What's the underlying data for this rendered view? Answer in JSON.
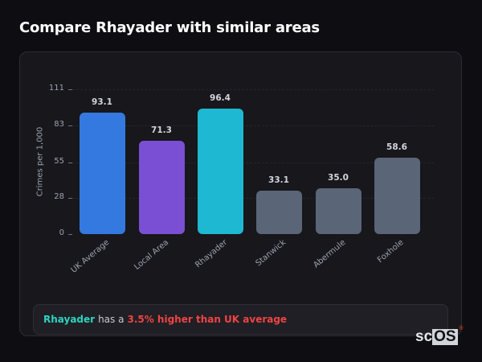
{
  "page": {
    "title": "Compare Rhayader with similar areas"
  },
  "summary": {
    "area": "Rhayader",
    "middle": "has a",
    "difference": "3.5% higher than UK average"
  },
  "logo": {
    "text_a": "sc",
    "text_b": "OS",
    "mark": "®"
  },
  "colors": {
    "uk_average": "#3479df",
    "local_area": "#7a4fd4",
    "rhayader": "#1fb8d2",
    "other": "#5a6577",
    "highlight_area": "#2dd4bf",
    "highlight_diff": "#ef4444"
  },
  "chart_data": {
    "type": "bar",
    "title": "Compare Rhayader with similar areas",
    "xlabel": "",
    "ylabel": "Crimes per 1,000",
    "ylim": [
      0,
      111
    ],
    "yticks": [
      0,
      28,
      55,
      83,
      111
    ],
    "grid": true,
    "legend": null,
    "categories": [
      "UK Average",
      "Local Area",
      "Rhayader",
      "Stanwick",
      "Abermule",
      "Foxhole"
    ],
    "values": [
      93.1,
      71.3,
      96.4,
      33.1,
      35.0,
      58.6
    ],
    "value_labels": [
      "93.1",
      "71.3",
      "96.4",
      "33.1",
      "35.0",
      "58.6"
    ],
    "bar_colors": [
      "#3479df",
      "#7a4fd4",
      "#1fb8d2",
      "#5a6577",
      "#5a6577",
      "#5a6577"
    ]
  }
}
